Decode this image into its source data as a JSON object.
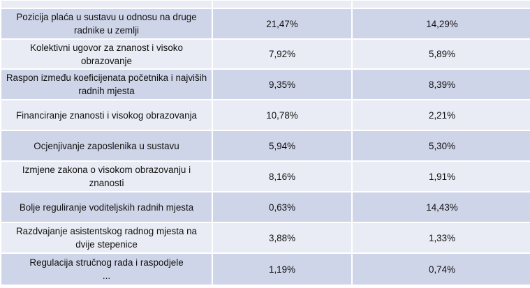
{
  "table": {
    "rows": [
      {
        "label": "Pozicija plaća u sustavu u odnosu na druge radnike u zemlji",
        "col1": "21,47%",
        "col2": "14,29%"
      },
      {
        "label": "Kolektivni ugovor za znanost i visoko obrazovanje",
        "col1": "7,92%",
        "col2": "5,89%"
      },
      {
        "label": "Raspon između koeficijenata početnika i najviših radnih mjesta",
        "col1": "9,35%",
        "col2": "8,39%"
      },
      {
        "label": "Financiranje znanosti i visokog obrazovanja",
        "col1": "10,78%",
        "col2": "2,21%"
      },
      {
        "label": "Ocjenjivanje zaposlenika u sustavu",
        "col1": "5,94%",
        "col2": "5,30%"
      },
      {
        "label": "Izmjene zakona o visokom obrazovanju i znanosti",
        "col1": "8,16%",
        "col2": "1,91%"
      },
      {
        "label": "Bolje reguliranje voditeljskih radnih mjesta",
        "col1": "0,63%",
        "col2": "14,43%"
      },
      {
        "label": "Razdvajanje asistentskog radnog mjesta na dvije stepenice",
        "col1": "3,88%",
        "col2": "1,33%"
      },
      {
        "label": "Regulacija stručnog rada i raspodjele ...",
        "col1": "1,19%",
        "col2": "0,74%"
      }
    ],
    "last_label_line1": "Regulacija stručnog rada i raspodjele",
    "last_label_line2": "..."
  },
  "colors": {
    "row_dark": "#cfd5e8",
    "row_light": "#e9ecf4",
    "border": "#ffffff",
    "text": "#111111"
  }
}
